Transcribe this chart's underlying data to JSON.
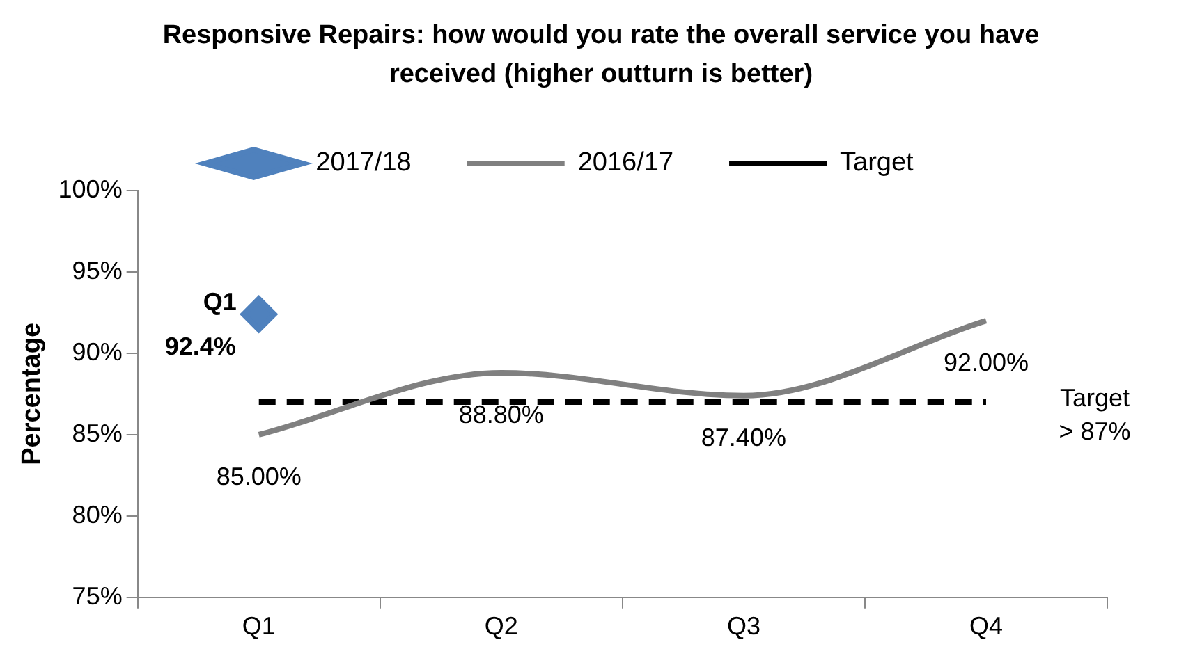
{
  "chart_data": {
    "type": "line",
    "title": "Responsive Repairs: how would you rate the overall service you have received (higher outturn is better)",
    "ylabel": "Percentage",
    "categories": [
      "Q1",
      "Q2",
      "Q3",
      "Q4"
    ],
    "series": [
      {
        "name": "2017/18",
        "color": "#4f81bd",
        "values": [
          92.4,
          null,
          null,
          null
        ],
        "marker": "diamond",
        "value_labels": [
          "Q1\n92.4%",
          null,
          null,
          null
        ]
      },
      {
        "name": "2016/17",
        "color": "#808080",
        "values": [
          85,
          88.8,
          87.4,
          92
        ],
        "marker": "none",
        "value_labels": [
          "85.00%",
          "88.80%",
          "87.40%",
          "92.00%"
        ]
      },
      {
        "name": "Target",
        "color": "#000000",
        "values": [
          87,
          87,
          87,
          87
        ],
        "marker": "none",
        "line_style": "dashed"
      }
    ],
    "ylim": [
      75,
      100
    ],
    "yticks": [
      {
        "value": 75,
        "label": "75%"
      },
      {
        "value": 80,
        "label": "80%"
      },
      {
        "value": 85,
        "label": "85%"
      },
      {
        "value": 90,
        "label": "90%"
      },
      {
        "value": 95,
        "label": "95%"
      },
      {
        "value": 100,
        "label": "100%"
      }
    ],
    "annotations": [
      {
        "text": "Target\n> 87%",
        "x": "Q4",
        "y": 87
      }
    ],
    "grid": false,
    "legend": "top"
  }
}
